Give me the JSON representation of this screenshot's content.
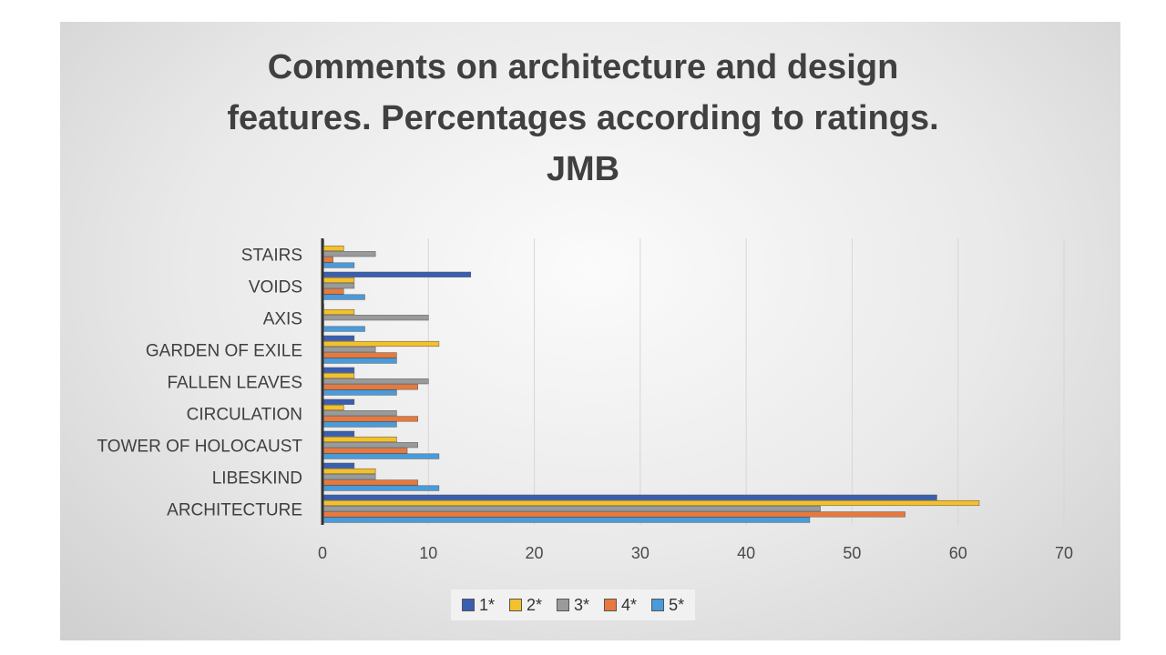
{
  "chart_data": {
    "type": "bar",
    "orientation": "horizontal",
    "title_lines": [
      "Comments on architecture and design",
      "features. Percentages according to ratings.",
      "JMB"
    ],
    "categories": [
      "STAIRS",
      "VOIDS",
      "AXIS",
      "GARDEN OF EXILE",
      "FALLEN LEAVES",
      "CIRCULATION",
      "TOWER OF HOLOCAUST",
      "LIBESKIND",
      "ARCHITECTURE"
    ],
    "series": [
      {
        "name": "1*",
        "color": "#3a5eb0",
        "values": [
          0,
          14,
          0,
          3,
          3,
          3,
          3,
          3,
          58
        ]
      },
      {
        "name": "2*",
        "color": "#f2c12c",
        "values": [
          2,
          3,
          3,
          11,
          3,
          2,
          7,
          5,
          62
        ]
      },
      {
        "name": "3*",
        "color": "#9a9a9a",
        "values": [
          5,
          3,
          10,
          5,
          10,
          7,
          9,
          5,
          47
        ]
      },
      {
        "name": "4*",
        "color": "#e8793e",
        "values": [
          1,
          2,
          0,
          7,
          9,
          9,
          8,
          9,
          55
        ]
      },
      {
        "name": "5*",
        "color": "#4a9bdb",
        "values": [
          3,
          4,
          4,
          7,
          7,
          7,
          11,
          11,
          46
        ]
      }
    ],
    "xlim": [
      0,
      70
    ],
    "xticks": [
      "0",
      "10",
      "20",
      "30",
      "40",
      "50",
      "60",
      "70"
    ],
    "xticks_values": [
      0,
      10,
      20,
      30,
      40,
      50,
      60,
      70
    ],
    "grid": true,
    "legend_position": "bottom"
  }
}
